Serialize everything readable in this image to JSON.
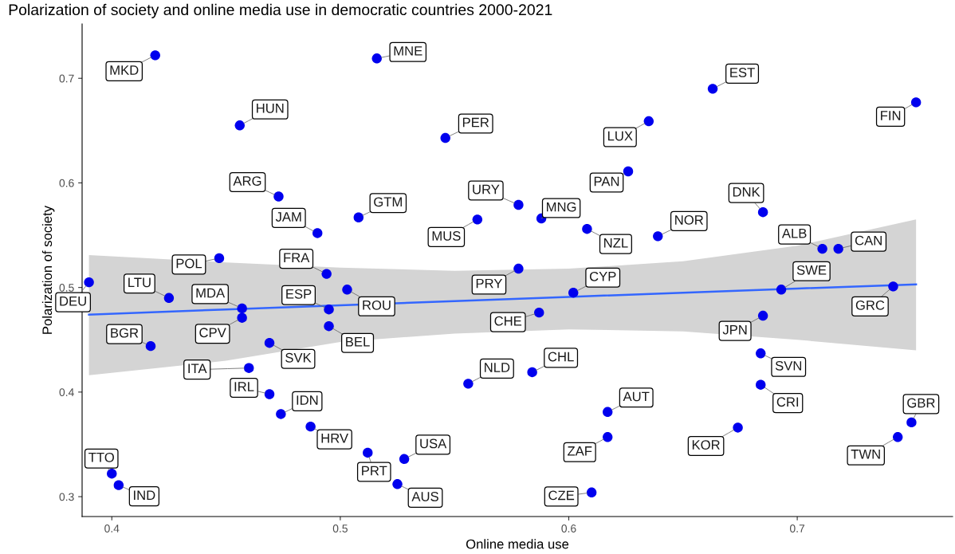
{
  "chart_data": {
    "type": "scatter",
    "title": "Polarization of society and online media use in democratic countries 2000-2021",
    "xlabel": "Online media use",
    "ylabel": "Polarization of society",
    "xlim": [
      0.387,
      0.768
    ],
    "ylim": [
      0.281,
      0.752
    ],
    "xticks": [
      0.4,
      0.5,
      0.6,
      0.7
    ],
    "yticks": [
      0.3,
      0.4,
      0.5,
      0.6,
      0.7
    ],
    "grid": false,
    "series": [
      {
        "marker": "circle",
        "color": "#0000ee",
        "x": [
          0.419,
          0.516,
          0.456,
          0.546,
          0.663,
          0.752,
          0.635,
          0.626,
          0.473,
          0.508,
          0.578,
          0.588,
          0.56,
          0.49,
          0.608,
          0.639,
          0.685,
          0.711,
          0.718,
          0.447,
          0.494,
          0.578,
          0.39,
          0.503,
          0.693,
          0.742,
          0.602,
          0.425,
          0.457,
          0.495,
          0.457,
          0.587,
          0.685,
          0.495,
          0.417,
          0.469,
          0.684,
          0.46,
          0.584,
          0.556,
          0.684,
          0.469,
          0.474,
          0.617,
          0.617,
          0.674,
          0.75,
          0.744,
          0.61,
          0.487,
          0.512,
          0.528,
          0.525,
          0.4,
          0.403
        ],
        "values": [
          0.722,
          0.719,
          0.655,
          0.643,
          0.69,
          0.677,
          0.659,
          0.611,
          0.587,
          0.567,
          0.579,
          0.566,
          0.565,
          0.552,
          0.556,
          0.549,
          0.572,
          0.537,
          0.537,
          0.528,
          0.513,
          0.518,
          0.505,
          0.498,
          0.498,
          0.501,
          0.495,
          0.49,
          0.48,
          0.479,
          0.471,
          0.476,
          0.473,
          0.463,
          0.444,
          0.447,
          0.437,
          0.423,
          0.419,
          0.408,
          0.407,
          0.398,
          0.379,
          0.381,
          0.357,
          0.366,
          0.371,
          0.357,
          0.304,
          0.367,
          0.342,
          0.336,
          0.312,
          0.322,
          0.311
        ]
      },
      {
        "type": "line",
        "color": "#3366ff",
        "x": [
          0.39,
          0.45,
          0.5,
          0.55,
          0.6,
          0.65,
          0.7,
          0.752
        ],
        "values": [
          0.474,
          0.479,
          0.483,
          0.487,
          0.491,
          0.495,
          0.499,
          0.503
        ],
        "lower": [
          0.416,
          0.43,
          0.448,
          0.456,
          0.46,
          0.458,
          0.45,
          0.44
        ],
        "upper": [
          0.531,
          0.524,
          0.519,
          0.516,
          0.518,
          0.525,
          0.54,
          0.565
        ]
      }
    ],
    "annotations": [
      {
        "text": "MKD",
        "x": 0.419,
        "y": 0.722
      },
      {
        "text": "MNE",
        "x": 0.516,
        "y": 0.719
      },
      {
        "text": "HUN",
        "x": 0.456,
        "y": 0.655
      },
      {
        "text": "PER",
        "x": 0.546,
        "y": 0.643
      },
      {
        "text": "EST",
        "x": 0.663,
        "y": 0.69
      },
      {
        "text": "FIN",
        "x": 0.752,
        "y": 0.677
      },
      {
        "text": "LUX",
        "x": 0.635,
        "y": 0.659
      },
      {
        "text": "PAN",
        "x": 0.626,
        "y": 0.611
      },
      {
        "text": "ARG",
        "x": 0.473,
        "y": 0.587
      },
      {
        "text": "GTM",
        "x": 0.508,
        "y": 0.567
      },
      {
        "text": "URY",
        "x": 0.578,
        "y": 0.579
      },
      {
        "text": "MNG",
        "x": 0.588,
        "y": 0.566
      },
      {
        "text": "MUS",
        "x": 0.56,
        "y": 0.565
      },
      {
        "text": "JAM",
        "x": 0.49,
        "y": 0.552
      },
      {
        "text": "NZL",
        "x": 0.608,
        "y": 0.556
      },
      {
        "text": "NOR",
        "x": 0.639,
        "y": 0.549
      },
      {
        "text": "DNK",
        "x": 0.685,
        "y": 0.572
      },
      {
        "text": "ALB",
        "x": 0.711,
        "y": 0.537
      },
      {
        "text": "CAN",
        "x": 0.718,
        "y": 0.537
      },
      {
        "text": "POL",
        "x": 0.447,
        "y": 0.528
      },
      {
        "text": "FRA",
        "x": 0.494,
        "y": 0.513
      },
      {
        "text": "PRY",
        "x": 0.578,
        "y": 0.518
      },
      {
        "text": "DEU",
        "x": 0.39,
        "y": 0.505
      },
      {
        "text": "ROU",
        "x": 0.503,
        "y": 0.498
      },
      {
        "text": "SWE",
        "x": 0.693,
        "y": 0.498
      },
      {
        "text": "GRC",
        "x": 0.742,
        "y": 0.501
      },
      {
        "text": "CYP",
        "x": 0.602,
        "y": 0.495
      },
      {
        "text": "LTU",
        "x": 0.425,
        "y": 0.49
      },
      {
        "text": "MDA",
        "x": 0.457,
        "y": 0.48
      },
      {
        "text": "ESP",
        "x": 0.495,
        "y": 0.479
      },
      {
        "text": "CPV",
        "x": 0.457,
        "y": 0.471
      },
      {
        "text": "CHE",
        "x": 0.587,
        "y": 0.476
      },
      {
        "text": "JPN",
        "x": 0.685,
        "y": 0.473
      },
      {
        "text": "BEL",
        "x": 0.495,
        "y": 0.463
      },
      {
        "text": "BGR",
        "x": 0.417,
        "y": 0.444
      },
      {
        "text": "SVK",
        "x": 0.469,
        "y": 0.447
      },
      {
        "text": "SVN",
        "x": 0.684,
        "y": 0.437
      },
      {
        "text": "ITA",
        "x": 0.46,
        "y": 0.423
      },
      {
        "text": "CHL",
        "x": 0.584,
        "y": 0.419
      },
      {
        "text": "NLD",
        "x": 0.556,
        "y": 0.408
      },
      {
        "text": "CRI",
        "x": 0.684,
        "y": 0.407
      },
      {
        "text": "IRL",
        "x": 0.469,
        "y": 0.398
      },
      {
        "text": "IDN",
        "x": 0.474,
        "y": 0.379
      },
      {
        "text": "AUT",
        "x": 0.617,
        "y": 0.381
      },
      {
        "text": "ZAF",
        "x": 0.617,
        "y": 0.357
      },
      {
        "text": "KOR",
        "x": 0.674,
        "y": 0.366
      },
      {
        "text": "GBR",
        "x": 0.75,
        "y": 0.371
      },
      {
        "text": "TWN",
        "x": 0.744,
        "y": 0.357
      },
      {
        "text": "CZE",
        "x": 0.61,
        "y": 0.304
      },
      {
        "text": "HRV",
        "x": 0.487,
        "y": 0.367
      },
      {
        "text": "PRT",
        "x": 0.512,
        "y": 0.342
      },
      {
        "text": "USA",
        "x": 0.528,
        "y": 0.336
      },
      {
        "text": "AUS",
        "x": 0.525,
        "y": 0.312
      },
      {
        "text": "TTO",
        "x": 0.4,
        "y": 0.322
      },
      {
        "text": "IND",
        "x": 0.403,
        "y": 0.311
      }
    ]
  }
}
